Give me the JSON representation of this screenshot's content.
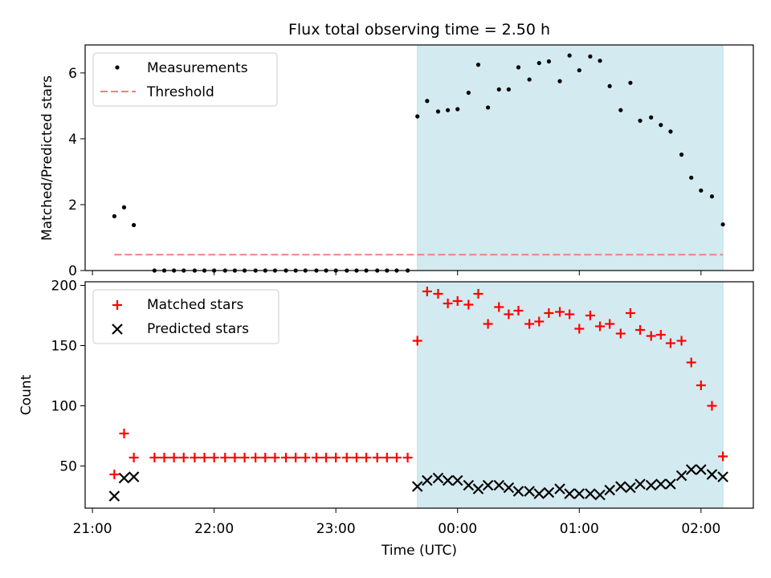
{
  "chart_data": {
    "title": "Flux total observing time = 2.50 h",
    "xlabel": "Time (UTC)",
    "x_ticks": [
      "21:00",
      "22:00",
      "23:00",
      "00:00",
      "01:00",
      "02:00"
    ],
    "x_tick_values": [
      21.0,
      22.0,
      23.0,
      24.0,
      25.0,
      26.0
    ],
    "xlim": [
      20.94,
      26.43
    ],
    "observing_window": [
      23.67,
      26.18
    ],
    "observing_window_color": "#d3eaf0",
    "panels": [
      {
        "type": "scatter",
        "ylabel": "Matched/Predicted stars",
        "ylim": [
          0,
          6.85
        ],
        "y_ticks": [
          0,
          2,
          4,
          6
        ],
        "legend": {
          "position": "top-left",
          "entries": [
            "Measurements",
            "Threshold"
          ]
        },
        "series": [
          {
            "name": "Measurements",
            "marker": "dot",
            "color": "#000000",
            "x": [
              21.18,
              21.26,
              21.34,
              21.51,
              21.59,
              21.67,
              21.75,
              21.84,
              21.92,
              22.0,
              22.09,
              22.17,
              22.25,
              22.34,
              22.42,
              22.5,
              22.59,
              22.67,
              22.75,
              22.84,
              22.92,
              23.0,
              23.09,
              23.17,
              23.25,
              23.34,
              23.42,
              23.5,
              23.59,
              23.67,
              23.75,
              23.84,
              23.92,
              24.0,
              24.09,
              24.17,
              24.25,
              24.34,
              24.42,
              24.5,
              24.59,
              24.67,
              24.75,
              24.84,
              24.92,
              25.0,
              25.09,
              25.17,
              25.25,
              25.34,
              25.42,
              25.5,
              25.59,
              25.67,
              25.75,
              25.84,
              25.92,
              26.0,
              26.09,
              26.18
            ],
            "y": [
              1.65,
              1.92,
              1.38,
              0,
              0,
              0,
              0,
              0,
              0,
              0,
              0,
              0,
              0,
              0,
              0,
              0,
              0,
              0,
              0,
              0,
              0,
              0,
              0,
              0,
              0,
              0,
              0,
              0,
              0,
              4.68,
              5.15,
              4.83,
              4.87,
              4.9,
              5.4,
              6.25,
              4.95,
              5.5,
              5.5,
              6.17,
              5.8,
              6.3,
              6.35,
              5.75,
              6.53,
              6.08,
              6.5,
              6.37,
              5.6,
              4.87,
              5.7,
              4.55,
              4.65,
              4.42,
              4.22,
              3.52,
              2.82,
              2.43,
              2.25,
              1.4
            ]
          },
          {
            "name": "Threshold",
            "type": "line",
            "style": "dashed",
            "color": "#f08080",
            "x": [
              21.18,
              26.18
            ],
            "y": [
              0.48,
              0.48
            ]
          }
        ]
      },
      {
        "type": "scatter",
        "ylabel": "Count",
        "ylim": [
          15,
          203
        ],
        "y_ticks": [
          50,
          100,
          150,
          200
        ],
        "legend": {
          "position": "top-left",
          "entries": [
            "Matched stars",
            "Predicted stars"
          ]
        },
        "series": [
          {
            "name": "Matched stars",
            "marker": "plus",
            "color": "#ff0000",
            "x": [
              21.18,
              21.26,
              21.34,
              21.51,
              21.59,
              21.67,
              21.75,
              21.84,
              21.92,
              22.0,
              22.09,
              22.17,
              22.25,
              22.34,
              22.42,
              22.5,
              22.59,
              22.67,
              22.75,
              22.84,
              22.92,
              23.0,
              23.09,
              23.17,
              23.25,
              23.34,
              23.42,
              23.5,
              23.59,
              23.67,
              23.75,
              23.84,
              23.92,
              24.0,
              24.09,
              24.17,
              24.25,
              24.34,
              24.42,
              24.5,
              24.59,
              24.67,
              24.75,
              24.84,
              24.92,
              25.0,
              25.09,
              25.17,
              25.25,
              25.34,
              25.42,
              25.5,
              25.59,
              25.67,
              25.75,
              25.84,
              25.92,
              26.0,
              26.09,
              26.18
            ],
            "y": [
              43,
              77,
              57,
              57,
              57,
              57,
              57,
              57,
              57,
              57,
              57,
              57,
              57,
              57,
              57,
              57,
              57,
              57,
              57,
              57,
              57,
              57,
              57,
              57,
              57,
              57,
              57,
              57,
              57,
              154,
              195,
              193,
              185,
              187,
              184,
              193,
              168,
              182,
              176,
              179,
              168,
              170,
              177,
              178,
              176,
              164,
              175,
              166,
              168,
              160,
              177,
              163,
              158,
              159,
              152,
              154,
              136,
              117,
              100,
              58
            ]
          },
          {
            "name": "Predicted stars",
            "marker": "x",
            "color": "#000000",
            "x": [
              21.18,
              21.26,
              21.34,
              23.67,
              23.75,
              23.84,
              23.92,
              24.0,
              24.09,
              24.17,
              24.25,
              24.34,
              24.42,
              24.5,
              24.59,
              24.67,
              24.75,
              24.84,
              24.92,
              25.0,
              25.09,
              25.17,
              25.25,
              25.34,
              25.42,
              25.5,
              25.59,
              25.67,
              25.75,
              25.84,
              25.92,
              26.0,
              26.09,
              26.18
            ],
            "y": [
              25,
              40,
              41,
              33,
              38,
              40,
              38,
              38,
              34,
              31,
              34,
              34,
              32,
              29,
              29,
              27,
              28,
              31,
              27,
              27,
              27,
              26,
              30,
              33,
              32,
              35,
              34,
              35,
              35,
              42,
              47,
              47,
              43,
              41
            ]
          }
        ]
      }
    ]
  }
}
